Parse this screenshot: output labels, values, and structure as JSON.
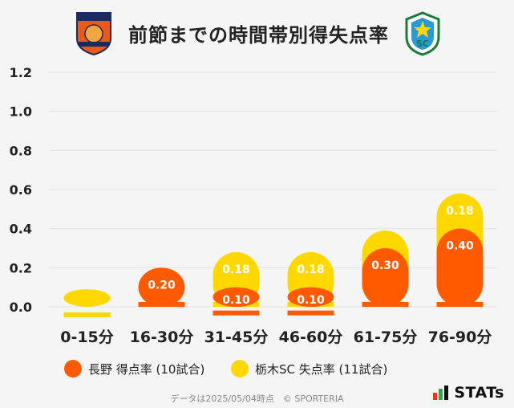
{
  "header": {
    "title": "前節までの時間帯別得失点率",
    "left_logo_text": "AC NAGANO PARCEIRO",
    "right_logo_text": "SC"
  },
  "chart_data": {
    "type": "bar",
    "categories": [
      "0-15分",
      "16-30分",
      "31-45分",
      "46-60分",
      "61-75分",
      "76-90分"
    ],
    "series": [
      {
        "name": "長野 得点率 (10試合)",
        "color": "#ff5a00",
        "values": [
          0.0,
          0.2,
          0.1,
          0.1,
          0.3,
          0.4
        ]
      },
      {
        "name": "栃木SC 失点率 (11試合)",
        "color": "#ffd800",
        "values": [
          0.09,
          0.0,
          0.18,
          0.18,
          0.09,
          0.18
        ]
      }
    ],
    "value_labels": [
      [
        "",
        "0.20",
        "0.10",
        "0.10",
        "0.30",
        "0.40"
      ],
      [
        "",
        "",
        "0.18",
        "0.18",
        "",
        "0.18"
      ]
    ],
    "y_ticks": [
      "0.0",
      "0.2",
      "0.4",
      "0.6",
      "0.8",
      "1.0",
      "1.2"
    ],
    "ylim": [
      0,
      1.2
    ],
    "grid": true,
    "stacked": true,
    "legend_position": "bottom"
  },
  "footer": {
    "note": "データは2025/05/04時点　© SPORTERIA",
    "brand": "STATs"
  }
}
